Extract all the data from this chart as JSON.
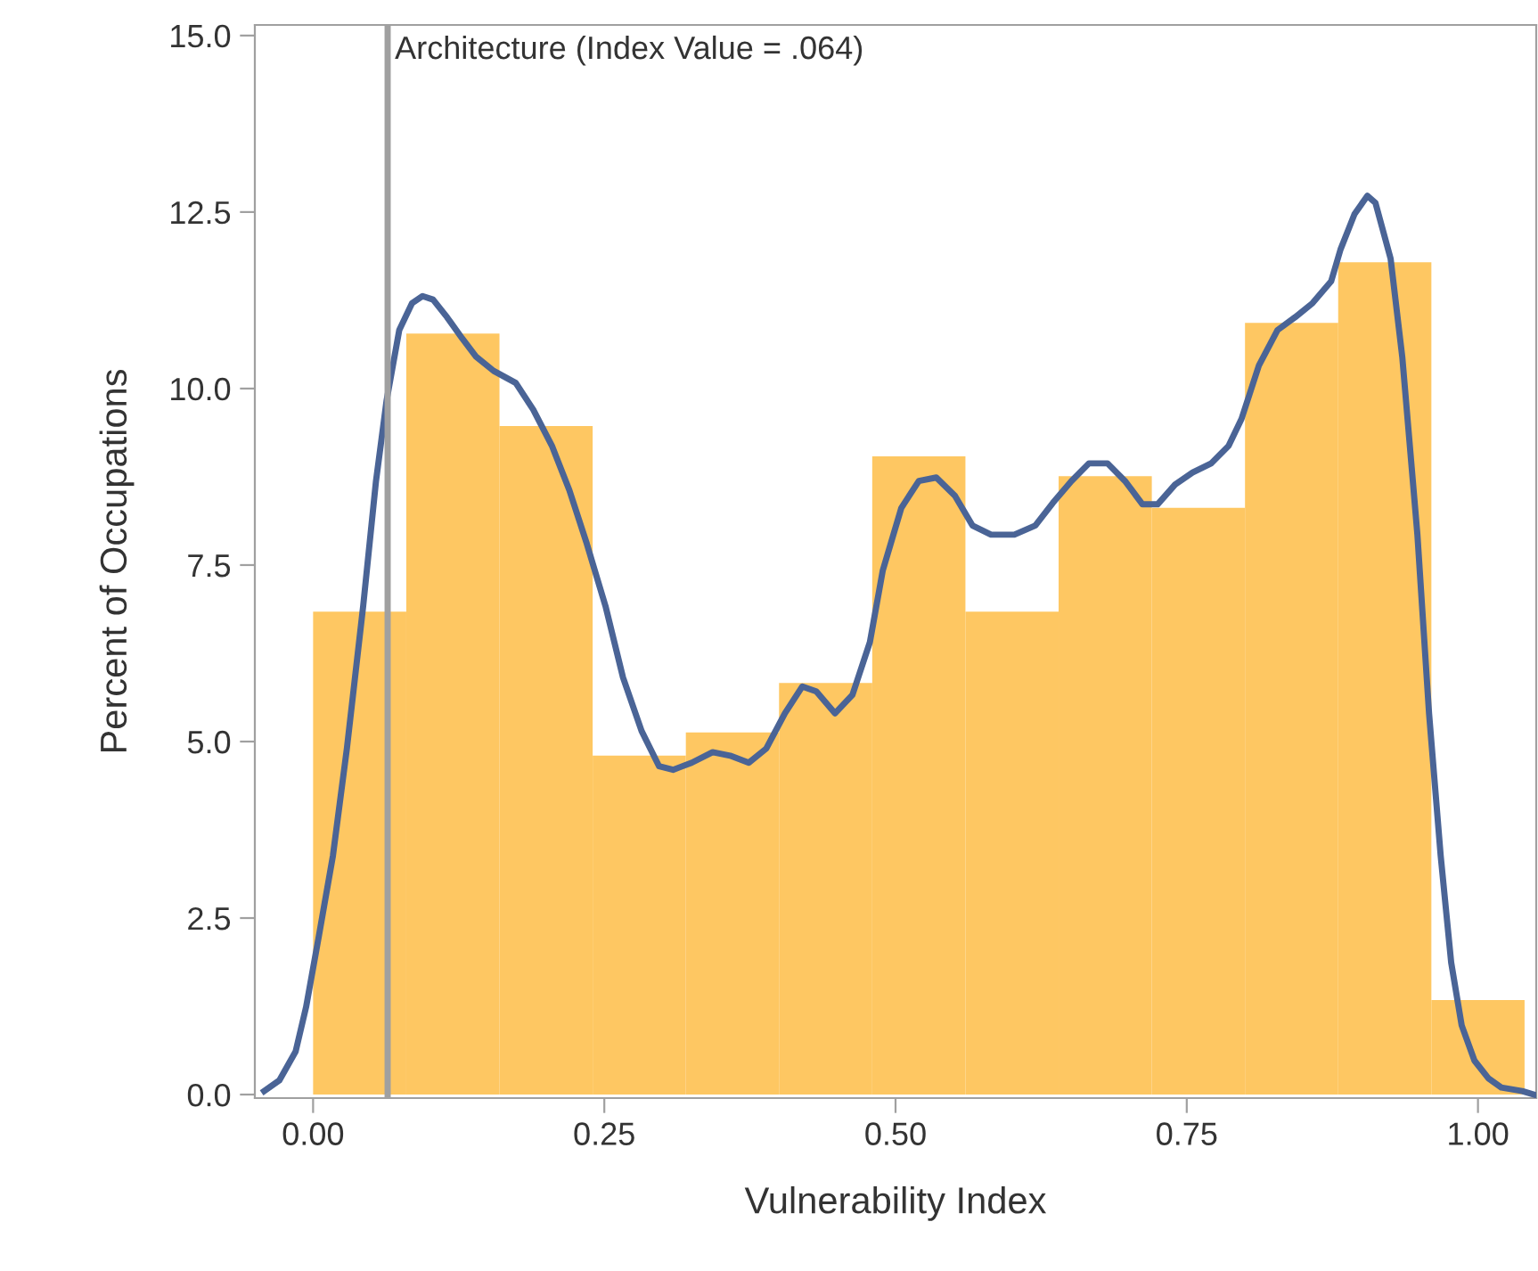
{
  "chart_data": {
    "type": "histogram",
    "xlabel": "Vulnerability Index",
    "ylabel": "Percent of Occupations",
    "xlim": [
      -0.05,
      1.05
    ],
    "ylim": [
      -0.05,
      15.15
    ],
    "xticks": [
      {
        "value": 0,
        "label": "0.00"
      },
      {
        "value": 0.25,
        "label": "0.25"
      },
      {
        "value": 0.5,
        "label": "0.50"
      },
      {
        "value": 0.75,
        "label": "0.75"
      },
      {
        "value": 1,
        "label": "1.00"
      }
    ],
    "yticks": [
      {
        "value": 0,
        "label": "0.0"
      },
      {
        "value": 2.5,
        "label": "2.5"
      },
      {
        "value": 5,
        "label": "5.0"
      },
      {
        "value": 7.5,
        "label": "7.5"
      },
      {
        "value": 10,
        "label": "10.0"
      },
      {
        "value": 12.5,
        "label": "12.5"
      },
      {
        "value": 15,
        "label": "15.0"
      }
    ],
    "grid": false,
    "legend": false,
    "series": [
      {
        "type": "histogram",
        "color": "#fec762",
        "bins": [
          0,
          0.08,
          0.16,
          0.24,
          0.32,
          0.4,
          0.48,
          0.56,
          0.64,
          0.72,
          0.8,
          0.88,
          0.96,
          1.04
        ],
        "values": [
          6.84,
          10.78,
          9.47,
          4.8,
          5.13,
          5.83,
          9.04,
          6.84,
          8.76,
          8.31,
          10.93,
          11.79,
          1.34
        ]
      },
      {
        "type": "line",
        "color": "#4a6496",
        "x": [
          -0.042,
          -0.029,
          -0.015,
          -0.006,
          0.005,
          0.017,
          0.029,
          0.043,
          0.054,
          0.063,
          0.074,
          0.085,
          0.094,
          0.103,
          0.115,
          0.128,
          0.14,
          0.155,
          0.174,
          0.189,
          0.205,
          0.22,
          0.235,
          0.251,
          0.266,
          0.282,
          0.297,
          0.309,
          0.325,
          0.343,
          0.358,
          0.374,
          0.389,
          0.405,
          0.42,
          0.432,
          0.448,
          0.463,
          0.478,
          0.489,
          0.505,
          0.52,
          0.535,
          0.551,
          0.566,
          0.582,
          0.602,
          0.62,
          0.635,
          0.651,
          0.666,
          0.682,
          0.697,
          0.712,
          0.725,
          0.74,
          0.755,
          0.771,
          0.786,
          0.797,
          0.812,
          0.828,
          0.843,
          0.858,
          0.874,
          0.882,
          0.894,
          0.905,
          0.912,
          0.925,
          0.935,
          0.948,
          0.958,
          0.968,
          0.977,
          0.986,
          0.997,
          1.009,
          1.02,
          1.038,
          1.048
        ],
        "values": [
          0.05,
          0.2,
          0.61,
          1.24,
          2.25,
          3.38,
          4.9,
          6.92,
          8.69,
          9.82,
          10.83,
          11.21,
          11.31,
          11.26,
          11.01,
          10.71,
          10.45,
          10.25,
          10.08,
          9.7,
          9.19,
          8.56,
          7.8,
          6.92,
          5.91,
          5.15,
          4.65,
          4.6,
          4.7,
          4.85,
          4.8,
          4.7,
          4.9,
          5.4,
          5.78,
          5.71,
          5.4,
          5.66,
          6.41,
          7.42,
          8.31,
          8.69,
          8.74,
          8.48,
          8.06,
          7.93,
          7.93,
          8.06,
          8.38,
          8.69,
          8.94,
          8.94,
          8.69,
          8.36,
          8.36,
          8.64,
          8.81,
          8.94,
          9.19,
          9.57,
          10.33,
          10.83,
          11.01,
          11.21,
          11.52,
          11.97,
          12.47,
          12.73,
          12.63,
          11.84,
          10.45,
          7.93,
          5.4,
          3.38,
          1.87,
          0.98,
          0.48,
          0.23,
          0.1,
          0.05,
          0.0
        ]
      }
    ],
    "ref_lines": [
      {
        "axis": "x",
        "value": 0.064,
        "label": "Architecture (Index Value = .064)",
        "color": "#a0a0a0"
      }
    ]
  }
}
